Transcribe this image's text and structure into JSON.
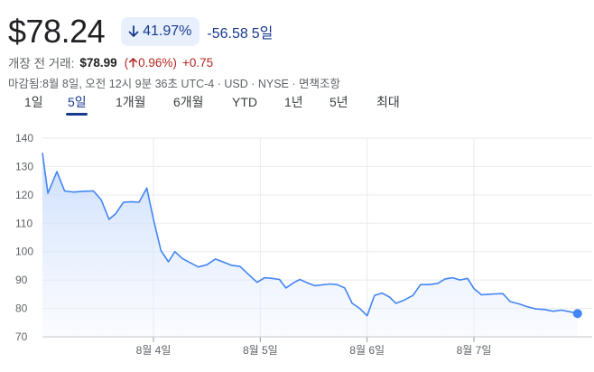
{
  "quote": {
    "price": "$78.24",
    "change_pct": "41.97%",
    "change_abs": "-56.58",
    "period": "5일"
  },
  "premarket": {
    "label": "개장 전 거래:",
    "price": "$78.99",
    "pct": "0.96%)",
    "pct_open": "(",
    "delta": "+0.75"
  },
  "meta": "마감됨:8월 8일, 오전 12시 9분 36초 UTC-4 · USD · NYSE · 면책조항",
  "tabs": [
    {
      "label": "1일"
    },
    {
      "label": "5일"
    },
    {
      "label": "1개월"
    },
    {
      "label": "6개월"
    },
    {
      "label": "YTD"
    },
    {
      "label": "1년"
    },
    {
      "label": "5년"
    },
    {
      "label": "최대"
    }
  ],
  "active_tab": "5일",
  "colors": {
    "line": "#4285f4",
    "fill_top": "#c6dafc",
    "down": "#1a3a8f",
    "up_red": "#b3261e"
  },
  "chart_data": {
    "type": "area",
    "y_ticks": [
      "140",
      "130",
      "120",
      "110",
      "100",
      "90",
      "80",
      "70"
    ],
    "ylim": [
      70,
      140
    ],
    "x_ticks": [
      "8월 4일",
      "8월 5일",
      "8월 6일",
      "8월 7일"
    ],
    "x_tick_positions": [
      1,
      2,
      3,
      4
    ],
    "xlim": [
      0,
      5.2
    ],
    "grid": true,
    "series": [
      {
        "points": [
          [
            0.0,
            134.8
          ],
          [
            0.05,
            120.6
          ],
          [
            0.13,
            128.2
          ],
          [
            0.2,
            121.4
          ],
          [
            0.28,
            121.0
          ],
          [
            0.38,
            121.3
          ],
          [
            0.46,
            121.4
          ],
          [
            0.53,
            118.2
          ],
          [
            0.6,
            111.4
          ],
          [
            0.66,
            113.4
          ],
          [
            0.73,
            117.4
          ],
          [
            0.8,
            117.6
          ],
          [
            0.87,
            117.4
          ],
          [
            0.94,
            122.4
          ],
          [
            1.0,
            111.4
          ],
          [
            1.07,
            100.4
          ],
          [
            1.14,
            96.4
          ],
          [
            1.2,
            100.0
          ],
          [
            1.27,
            97.6
          ],
          [
            1.34,
            96.2
          ],
          [
            1.42,
            94.6
          ],
          [
            1.5,
            95.4
          ],
          [
            1.58,
            97.4
          ],
          [
            1.65,
            96.4
          ],
          [
            1.73,
            95.2
          ],
          [
            1.81,
            94.8
          ],
          [
            1.89,
            92.0
          ],
          [
            1.97,
            89.2
          ],
          [
            2.04,
            90.8
          ],
          [
            2.11,
            90.6
          ],
          [
            2.18,
            90.2
          ],
          [
            2.24,
            87.2
          ],
          [
            2.31,
            89.0
          ],
          [
            2.37,
            90.2
          ],
          [
            2.43,
            89.2
          ],
          [
            2.51,
            88.0
          ],
          [
            2.58,
            88.3
          ],
          [
            2.65,
            88.6
          ],
          [
            2.72,
            88.4
          ],
          [
            2.79,
            87.2
          ],
          [
            2.86,
            81.8
          ],
          [
            2.93,
            80.0
          ],
          [
            3.0,
            77.4
          ],
          [
            3.07,
            84.6
          ],
          [
            3.14,
            85.4
          ],
          [
            3.21,
            84.0
          ],
          [
            3.27,
            81.8
          ],
          [
            3.34,
            82.8
          ],
          [
            3.43,
            84.6
          ],
          [
            3.5,
            88.4
          ],
          [
            3.58,
            88.4
          ],
          [
            3.66,
            88.8
          ],
          [
            3.73,
            90.4
          ],
          [
            3.8,
            90.8
          ],
          [
            3.87,
            90.0
          ],
          [
            3.94,
            90.6
          ],
          [
            4.0,
            87.0
          ],
          [
            4.07,
            84.8
          ],
          [
            4.14,
            85.0
          ],
          [
            4.2,
            85.1
          ],
          [
            4.27,
            85.2
          ],
          [
            4.34,
            82.4
          ],
          [
            4.42,
            81.6
          ],
          [
            4.5,
            80.6
          ],
          [
            4.58,
            79.8
          ],
          [
            4.66,
            79.6
          ],
          [
            4.74,
            79.0
          ],
          [
            4.82,
            79.4
          ],
          [
            4.9,
            78.8
          ],
          [
            4.97,
            78.2
          ]
        ]
      }
    ]
  }
}
